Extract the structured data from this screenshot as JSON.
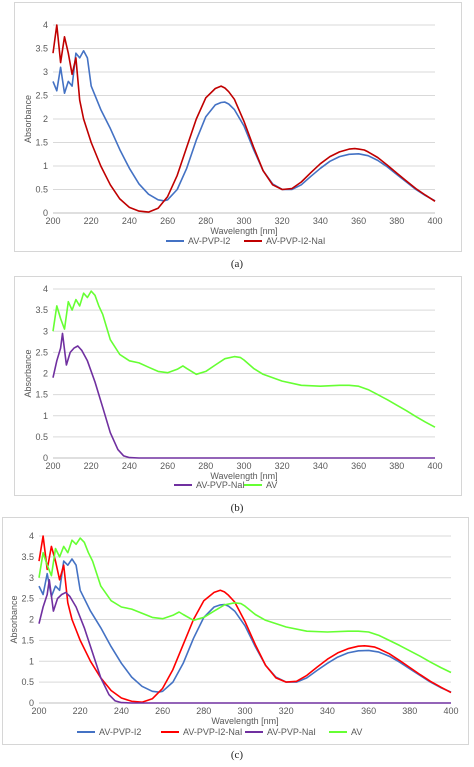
{
  "captions": [
    "(a)",
    "(b)",
    "(c)"
  ],
  "chart_data": [
    {
      "type": "line",
      "xlabel": "Wavelength [nm]",
      "ylabel": "Absorbance",
      "xlim": [
        200,
        400
      ],
      "ylim": [
        0,
        4
      ],
      "xticks": [
        "200",
        "220",
        "240",
        "260",
        "280",
        "300",
        "320",
        "340",
        "360",
        "380",
        "400"
      ],
      "yticks": [
        "0",
        "0.5",
        "1",
        "1.5",
        "2",
        "2.5",
        "3",
        "3.5",
        "4"
      ],
      "grid": true,
      "legend_position": "bottom",
      "series": [
        {
          "name": "AV-PVP-I2",
          "color": "#4472C4",
          "x": [
            200,
            202,
            204,
            206,
            208,
            210,
            212,
            214,
            216,
            218,
            220,
            225,
            230,
            235,
            240,
            245,
            250,
            255,
            258,
            260,
            265,
            270,
            275,
            280,
            285,
            288,
            290,
            292,
            295,
            300,
            305,
            310,
            315,
            320,
            325,
            330,
            335,
            340,
            345,
            350,
            355,
            360,
            365,
            370,
            375,
            380,
            385,
            390,
            395,
            400
          ],
          "y": [
            2.8,
            2.6,
            3.1,
            2.55,
            2.8,
            2.7,
            3.4,
            3.3,
            3.45,
            3.3,
            2.7,
            2.2,
            1.8,
            1.35,
            0.95,
            0.62,
            0.4,
            0.28,
            0.26,
            0.28,
            0.5,
            0.95,
            1.55,
            2.05,
            2.3,
            2.35,
            2.36,
            2.32,
            2.2,
            1.85,
            1.35,
            0.9,
            0.62,
            0.5,
            0.5,
            0.6,
            0.78,
            0.95,
            1.1,
            1.2,
            1.25,
            1.26,
            1.22,
            1.12,
            0.98,
            0.82,
            0.66,
            0.5,
            0.37,
            0.26
          ]
        },
        {
          "name": "AV-PVP-I2-NaI",
          "color": "#C00000",
          "x": [
            200,
            202,
            204,
            206,
            208,
            210,
            212,
            214,
            216,
            220,
            225,
            230,
            235,
            240,
            245,
            250,
            255,
            260,
            265,
            270,
            275,
            280,
            285,
            288,
            290,
            292,
            295,
            300,
            305,
            310,
            315,
            320,
            325,
            330,
            335,
            340,
            345,
            350,
            355,
            358,
            360,
            363,
            365,
            370,
            375,
            380,
            385,
            390,
            395,
            400
          ],
          "y": [
            3.4,
            4.0,
            3.2,
            3.75,
            3.4,
            2.95,
            3.3,
            2.4,
            2.0,
            1.5,
            1.0,
            0.6,
            0.3,
            0.12,
            0.04,
            0.02,
            0.1,
            0.35,
            0.8,
            1.4,
            2.0,
            2.45,
            2.65,
            2.7,
            2.66,
            2.58,
            2.42,
            1.95,
            1.4,
            0.9,
            0.6,
            0.5,
            0.52,
            0.66,
            0.86,
            1.05,
            1.2,
            1.3,
            1.36,
            1.37,
            1.36,
            1.34,
            1.3,
            1.18,
            1.02,
            0.85,
            0.68,
            0.52,
            0.38,
            0.25
          ]
        }
      ]
    },
    {
      "type": "line",
      "xlabel": "Wavelength [nm]",
      "ylabel": "Absorbance",
      "xlim": [
        200,
        400
      ],
      "ylim": [
        0,
        4
      ],
      "xticks": [
        "200",
        "220",
        "240",
        "260",
        "280",
        "300",
        "320",
        "340",
        "360",
        "380",
        "400"
      ],
      "yticks": [
        "0",
        "0.5",
        "1",
        "1.5",
        "2",
        "2.5",
        "3",
        "3.5",
        "4"
      ],
      "grid": true,
      "legend_position": "bottom",
      "series": [
        {
          "name": "AV-PVP-NaI",
          "color": "#7030A0",
          "x": [
            200,
            202,
            204,
            205,
            207,
            209,
            211,
            213,
            215,
            218,
            222,
            226,
            230,
            234,
            237,
            240,
            245,
            250,
            300,
            350,
            400
          ],
          "y": [
            1.9,
            2.3,
            2.6,
            2.95,
            2.2,
            2.5,
            2.6,
            2.65,
            2.55,
            2.3,
            1.8,
            1.2,
            0.6,
            0.2,
            0.05,
            0.01,
            0,
            0,
            0,
            0,
            0
          ]
        },
        {
          "name": "AV",
          "color": "#66FF33",
          "x": [
            200,
            202,
            204,
            206,
            208,
            210,
            212,
            214,
            216,
            218,
            220,
            222,
            224,
            226,
            228,
            230,
            235,
            240,
            245,
            250,
            255,
            260,
            265,
            268,
            270,
            275,
            280,
            285,
            290,
            295,
            298,
            300,
            305,
            310,
            320,
            330,
            340,
            350,
            355,
            360,
            365,
            370,
            375,
            380,
            385,
            390,
            395,
            400
          ],
          "y": [
            3.0,
            3.6,
            3.3,
            3.05,
            3.7,
            3.5,
            3.75,
            3.6,
            3.9,
            3.8,
            3.95,
            3.85,
            3.6,
            3.4,
            3.1,
            2.8,
            2.45,
            2.3,
            2.25,
            2.15,
            2.05,
            2.02,
            2.1,
            2.18,
            2.12,
            1.98,
            2.05,
            2.2,
            2.35,
            2.4,
            2.38,
            2.32,
            2.12,
            1.98,
            1.82,
            1.72,
            1.7,
            1.72,
            1.72,
            1.7,
            1.62,
            1.5,
            1.38,
            1.25,
            1.12,
            0.98,
            0.85,
            0.73
          ]
        }
      ]
    },
    {
      "type": "line",
      "xlabel": "Wavelength [nm]",
      "ylabel": "Absorbance",
      "xlim": [
        200,
        400
      ],
      "ylim": [
        0,
        4
      ],
      "xticks": [
        "200",
        "220",
        "240",
        "260",
        "280",
        "300",
        "320",
        "340",
        "360",
        "380",
        "400"
      ],
      "yticks": [
        "0",
        "0.5",
        "1",
        "1.5",
        "2",
        "2.5",
        "3",
        "3.5",
        "4"
      ],
      "grid": true,
      "legend_position": "bottom",
      "series": [
        {
          "name": "AV-PVP-I2",
          "color": "#4472C4",
          "x": [
            200,
            202,
            204,
            206,
            208,
            210,
            212,
            214,
            216,
            218,
            220,
            225,
            230,
            235,
            240,
            245,
            250,
            255,
            258,
            260,
            265,
            270,
            275,
            280,
            285,
            288,
            290,
            292,
            295,
            300,
            305,
            310,
            315,
            320,
            325,
            330,
            335,
            340,
            345,
            350,
            355,
            360,
            365,
            370,
            375,
            380,
            385,
            390,
            395,
            400
          ],
          "y": [
            2.8,
            2.6,
            3.1,
            2.55,
            2.8,
            2.7,
            3.4,
            3.3,
            3.45,
            3.3,
            2.7,
            2.2,
            1.8,
            1.35,
            0.95,
            0.62,
            0.4,
            0.28,
            0.26,
            0.28,
            0.5,
            0.95,
            1.55,
            2.05,
            2.3,
            2.35,
            2.36,
            2.32,
            2.2,
            1.85,
            1.35,
            0.9,
            0.62,
            0.5,
            0.5,
            0.6,
            0.78,
            0.95,
            1.1,
            1.2,
            1.25,
            1.26,
            1.22,
            1.12,
            0.98,
            0.82,
            0.66,
            0.5,
            0.37,
            0.26
          ]
        },
        {
          "name": "AV-PVP-I2-NaI",
          "color": "#FF0000",
          "x": [
            200,
            202,
            204,
            206,
            208,
            210,
            212,
            214,
            216,
            220,
            225,
            230,
            235,
            240,
            245,
            250,
            255,
            260,
            265,
            270,
            275,
            280,
            285,
            288,
            290,
            292,
            295,
            300,
            305,
            310,
            315,
            320,
            325,
            330,
            335,
            340,
            345,
            350,
            355,
            358,
            360,
            363,
            365,
            370,
            375,
            380,
            385,
            390,
            395,
            400
          ],
          "y": [
            3.4,
            4.0,
            3.2,
            3.75,
            3.4,
            2.95,
            3.3,
            2.4,
            2.0,
            1.5,
            1.0,
            0.6,
            0.3,
            0.12,
            0.04,
            0.02,
            0.1,
            0.35,
            0.8,
            1.4,
            2.0,
            2.45,
            2.65,
            2.7,
            2.66,
            2.58,
            2.42,
            1.95,
            1.4,
            0.9,
            0.6,
            0.5,
            0.52,
            0.66,
            0.86,
            1.05,
            1.2,
            1.3,
            1.36,
            1.37,
            1.36,
            1.34,
            1.3,
            1.18,
            1.02,
            0.85,
            0.68,
            0.52,
            0.38,
            0.25
          ]
        },
        {
          "name": "AV-PVP-NaI",
          "color": "#7030A0",
          "x": [
            200,
            202,
            204,
            205,
            207,
            209,
            211,
            213,
            215,
            218,
            222,
            226,
            230,
            234,
            237,
            240,
            245,
            250,
            300,
            350,
            400
          ],
          "y": [
            1.9,
            2.3,
            2.6,
            2.95,
            2.2,
            2.5,
            2.6,
            2.65,
            2.55,
            2.3,
            1.8,
            1.2,
            0.6,
            0.2,
            0.05,
            0.01,
            0,
            0,
            0,
            0,
            0
          ]
        },
        {
          "name": "AV",
          "color": "#66FF33",
          "x": [
            200,
            202,
            204,
            206,
            208,
            210,
            212,
            214,
            216,
            218,
            220,
            222,
            224,
            226,
            228,
            230,
            235,
            240,
            245,
            250,
            255,
            260,
            265,
            268,
            270,
            275,
            280,
            285,
            290,
            295,
            298,
            300,
            305,
            310,
            320,
            330,
            340,
            350,
            355,
            360,
            365,
            370,
            375,
            380,
            385,
            390,
            395,
            400
          ],
          "y": [
            3.0,
            3.6,
            3.3,
            3.05,
            3.7,
            3.5,
            3.75,
            3.6,
            3.9,
            3.8,
            3.95,
            3.85,
            3.6,
            3.4,
            3.1,
            2.8,
            2.45,
            2.3,
            2.25,
            2.15,
            2.05,
            2.02,
            2.1,
            2.18,
            2.12,
            1.98,
            2.05,
            2.2,
            2.35,
            2.4,
            2.38,
            2.32,
            2.12,
            1.98,
            1.82,
            1.72,
            1.7,
            1.72,
            1.72,
            1.7,
            1.62,
            1.5,
            1.38,
            1.25,
            1.12,
            0.98,
            0.85,
            0.73
          ]
        }
      ]
    }
  ]
}
